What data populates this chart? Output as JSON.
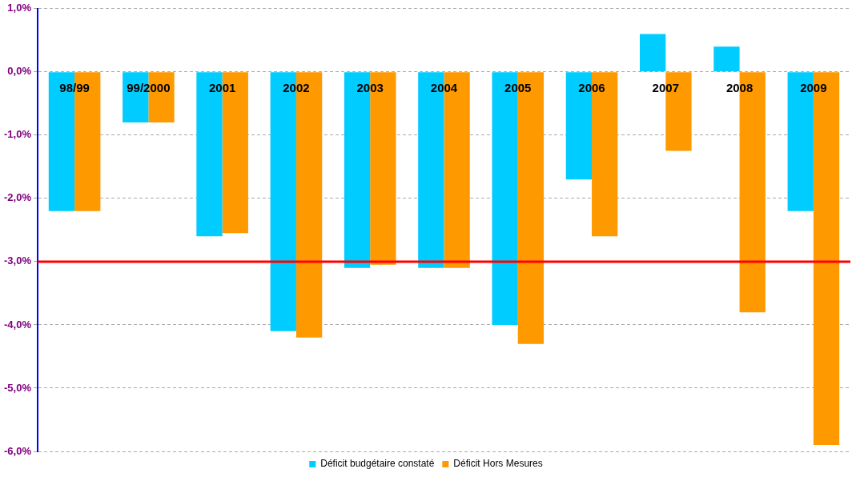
{
  "chart_data": {
    "type": "bar",
    "categories": [
      "98/99",
      "99/2000",
      "2001",
      "2002",
      "2003",
      "2004",
      "2005",
      "2006",
      "2007",
      "2008",
      "2009"
    ],
    "series": [
      {
        "name": "Déficit budgétaire constaté",
        "color": "#00ccff",
        "values": [
          -2.2,
          -0.8,
          -2.6,
          -4.1,
          -3.1,
          -3.1,
          -4.0,
          -1.7,
          0.6,
          0.4,
          -2.2
        ]
      },
      {
        "name": "Déficit Hors Mesures",
        "color": "#ff9900",
        "values": [
          -2.2,
          -0.8,
          -2.55,
          -4.2,
          -3.05,
          -3.1,
          -4.3,
          -2.6,
          -1.25,
          -3.8,
          -5.9
        ]
      }
    ],
    "ylim": [
      -6,
      1
    ],
    "yticks": [
      {
        "value": 1,
        "label": "1,0%"
      },
      {
        "value": 0,
        "label": "0,0%"
      },
      {
        "value": -1,
        "label": "-1,0%"
      },
      {
        "value": -2,
        "label": "-2,0%"
      },
      {
        "value": -3,
        "label": "-3,0%"
      },
      {
        "value": -4,
        "label": "-4,0%"
      },
      {
        "value": -5,
        "label": "-5,0%"
      },
      {
        "value": -6,
        "label": "-6,0%"
      }
    ],
    "ref_lines": [
      {
        "axis": "y",
        "value": -3,
        "color": "#ff0000",
        "line_style": "solid"
      }
    ],
    "grid": "y",
    "legend": "bottom"
  }
}
